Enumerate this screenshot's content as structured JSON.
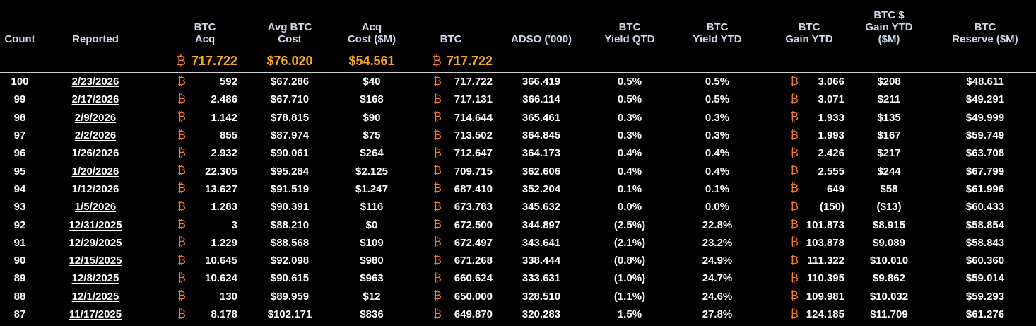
{
  "btc_symbol": "₿",
  "headers": {
    "count": [
      "Count"
    ],
    "reported": [
      "Reported"
    ],
    "btc_acq": [
      "BTC",
      "Acq"
    ],
    "avg_cost": [
      "Avg BTC",
      "Cost"
    ],
    "acq_cost": [
      "Acq",
      "Cost ($M)"
    ],
    "btc": [
      "BTC"
    ],
    "adso": [
      "ADSO ('000)"
    ],
    "yield_qtd": [
      "BTC",
      "Yield QTD"
    ],
    "yield_ytd": [
      "BTC",
      "Yield YTD"
    ],
    "gain_ytd": [
      "BTC",
      "Gain YTD"
    ],
    "usd_gain_ytd": [
      "BTC $",
      "Gain YTD",
      "($M)"
    ],
    "reserve": [
      "BTC",
      "Reserve ($M)"
    ]
  },
  "summary": {
    "btc_acq": "717.722",
    "avg_cost": "$76.020",
    "acq_cost": "$54.561",
    "btc": "717.722"
  },
  "rows": [
    {
      "count": "100",
      "reported": "2/23/2026",
      "btc_acq": "592",
      "avg_cost": "$67.286",
      "acq_cost": "$40",
      "btc": "717.722",
      "adso": "366.419",
      "yield_qtd": "0.5%",
      "yield_ytd": "0.5%",
      "gain_ytd": "3.066",
      "usd_gain_ytd": "$208",
      "reserve": "$48.611"
    },
    {
      "count": "99",
      "reported": "2/17/2026",
      "btc_acq": "2.486",
      "avg_cost": "$67.710",
      "acq_cost": "$168",
      "btc": "717.131",
      "adso": "366.114",
      "yield_qtd": "0.5%",
      "yield_ytd": "0.5%",
      "gain_ytd": "3.071",
      "usd_gain_ytd": "$211",
      "reserve": "$49.291"
    },
    {
      "count": "98",
      "reported": "2/9/2026",
      "btc_acq": "1.142",
      "avg_cost": "$78.815",
      "acq_cost": "$90",
      "btc": "714.644",
      "adso": "365.461",
      "yield_qtd": "0.3%",
      "yield_ytd": "0.3%",
      "gain_ytd": "1.933",
      "usd_gain_ytd": "$135",
      "reserve": "$49.999"
    },
    {
      "count": "97",
      "reported": "2/2/2026",
      "btc_acq": "855",
      "avg_cost": "$87.974",
      "acq_cost": "$75",
      "btc": "713.502",
      "adso": "364.845",
      "yield_qtd": "0.3%",
      "yield_ytd": "0.3%",
      "gain_ytd": "1.993",
      "usd_gain_ytd": "$167",
      "reserve": "$59.749"
    },
    {
      "count": "96",
      "reported": "1/26/2026",
      "btc_acq": "2.932",
      "avg_cost": "$90.061",
      "acq_cost": "$264",
      "btc": "712.647",
      "adso": "364.173",
      "yield_qtd": "0.4%",
      "yield_ytd": "0.4%",
      "gain_ytd": "2.426",
      "usd_gain_ytd": "$217",
      "reserve": "$63.708"
    },
    {
      "count": "95",
      "reported": "1/20/2026",
      "btc_acq": "22.305",
      "avg_cost": "$95.284",
      "acq_cost": "$2.125",
      "btc": "709.715",
      "adso": "362.606",
      "yield_qtd": "0.4%",
      "yield_ytd": "0.4%",
      "gain_ytd": "2.555",
      "usd_gain_ytd": "$244",
      "reserve": "$67.799"
    },
    {
      "count": "94",
      "reported": "1/12/2026",
      "btc_acq": "13.627",
      "avg_cost": "$91.519",
      "acq_cost": "$1.247",
      "btc": "687.410",
      "adso": "352.204",
      "yield_qtd": "0.1%",
      "yield_ytd": "0.1%",
      "gain_ytd": "649",
      "usd_gain_ytd": "$58",
      "reserve": "$61.996"
    },
    {
      "count": "93",
      "reported": "1/5/2026",
      "btc_acq": "1.283",
      "avg_cost": "$90.391",
      "acq_cost": "$116",
      "btc": "673.783",
      "adso": "345.632",
      "yield_qtd": "0.0%",
      "yield_ytd": "0.0%",
      "gain_ytd": "(150)",
      "usd_gain_ytd": "($13)",
      "reserve": "$60.433"
    },
    {
      "count": "92",
      "reported": "12/31/2025",
      "btc_acq": "3",
      "avg_cost": "$88.210",
      "acq_cost": "$0",
      "btc": "672.500",
      "adso": "344.897",
      "yield_qtd": "(2.5%)",
      "yield_ytd": "22.8%",
      "gain_ytd": "101.873",
      "usd_gain_ytd": "$8.915",
      "reserve": "$58.854"
    },
    {
      "count": "91",
      "reported": "12/29/2025",
      "btc_acq": "1.229",
      "avg_cost": "$88.568",
      "acq_cost": "$109",
      "btc": "672.497",
      "adso": "343.641",
      "yield_qtd": "(2.1%)",
      "yield_ytd": "23.2%",
      "gain_ytd": "103.878",
      "usd_gain_ytd": "$9.089",
      "reserve": "$58.843"
    },
    {
      "count": "90",
      "reported": "12/15/2025",
      "btc_acq": "10.645",
      "avg_cost": "$92.098",
      "acq_cost": "$980",
      "btc": "671.268",
      "adso": "338.444",
      "yield_qtd": "(0.8%)",
      "yield_ytd": "24.9%",
      "gain_ytd": "111.322",
      "usd_gain_ytd": "$10.010",
      "reserve": "$60.360"
    },
    {
      "count": "89",
      "reported": "12/8/2025",
      "btc_acq": "10.624",
      "avg_cost": "$90.615",
      "acq_cost": "$963",
      "btc": "660.624",
      "adso": "333.631",
      "yield_qtd": "(1.0%)",
      "yield_ytd": "24.7%",
      "gain_ytd": "110.395",
      "usd_gain_ytd": "$9.862",
      "reserve": "$59.014"
    },
    {
      "count": "88",
      "reported": "12/1/2025",
      "btc_acq": "130",
      "avg_cost": "$89.959",
      "acq_cost": "$12",
      "btc": "650.000",
      "adso": "328.510",
      "yield_qtd": "(1.1%)",
      "yield_ytd": "24.6%",
      "gain_ytd": "109.981",
      "usd_gain_ytd": "$10.032",
      "reserve": "$59.293"
    },
    {
      "count": "87",
      "reported": "11/17/2025",
      "btc_acq": "8.178",
      "avg_cost": "$102.171",
      "acq_cost": "$836",
      "btc": "649.870",
      "adso": "320.283",
      "yield_qtd": "1.5%",
      "yield_ytd": "27.8%",
      "gain_ytd": "124.185",
      "usd_gain_ytd": "$11.709",
      "reserve": "$61.276"
    }
  ]
}
